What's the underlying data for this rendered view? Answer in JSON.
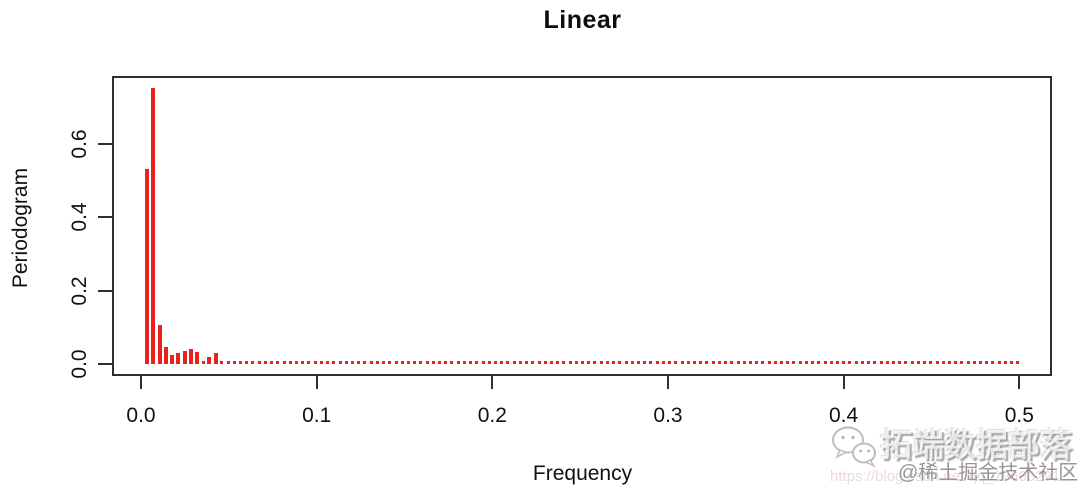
{
  "chart_data": {
    "type": "bar",
    "title": "Linear",
    "xlabel": "Frequency",
    "ylabel": "Periodogram",
    "xlim": [
      0,
      0.52
    ],
    "ylim": [
      0,
      0.76
    ],
    "x_ticks": [
      "0.0",
      "0.1",
      "0.2",
      "0.3",
      "0.4",
      "0.5"
    ],
    "y_ticks": [
      "0.0",
      "0.2",
      "0.4",
      "0.6"
    ],
    "grid": "off",
    "legend": "none",
    "bar_color": "#e8231e",
    "axis_color": "#2e2e2e",
    "freq_step": 0.00354,
    "freq_note": "frequency of point k = k * freq_step",
    "values": [
      0.53,
      0.75,
      0.105,
      0.047,
      0.024,
      0.031,
      0.035,
      0.04,
      0.032,
      0.005,
      0.018,
      0.029,
      0.005,
      0.004,
      0.006,
      0.004,
      0.005,
      0.004,
      0.004,
      0.006,
      0.004,
      0.005,
      0.004,
      0.005,
      0.004,
      0.006,
      0.004,
      0.004,
      0.005,
      0.004,
      0.005,
      0.004,
      0.006,
      0.004,
      0.005,
      0.004,
      0.004,
      0.005,
      0.004,
      0.006,
      0.004,
      0.005,
      0.004,
      0.005,
      0.004,
      0.004,
      0.006,
      0.004,
      0.005,
      0.004,
      0.005,
      0.004,
      0.004,
      0.006,
      0.004,
      0.005,
      0.004,
      0.004,
      0.005,
      0.004,
      0.006,
      0.004,
      0.005,
      0.004,
      0.005,
      0.004,
      0.004,
      0.006,
      0.004,
      0.005,
      0.004,
      0.004,
      0.006,
      0.004,
      0.005,
      0.004,
      0.005,
      0.004,
      0.004,
      0.006,
      0.004,
      0.005,
      0.004,
      0.004,
      0.005,
      0.004,
      0.006,
      0.004,
      0.005,
      0.004,
      0.005,
      0.004,
      0.004,
      0.006,
      0.004,
      0.005,
      0.004,
      0.004,
      0.005,
      0.004,
      0.006,
      0.004,
      0.005,
      0.004,
      0.005,
      0.004,
      0.004,
      0.006,
      0.004,
      0.005,
      0.004,
      0.004,
      0.006,
      0.004,
      0.005,
      0.004,
      0.005,
      0.004,
      0.004,
      0.006,
      0.004,
      0.005,
      0.004,
      0.005,
      0.004,
      0.004,
      0.006,
      0.004,
      0.005,
      0.004,
      0.005,
      0.004,
      0.004,
      0.006,
      0.004,
      0.005,
      0.004,
      0.004,
      0.005,
      0.004,
      0.005
    ]
  },
  "watermark": {
    "brand": "拓端数据部落",
    "community": "@稀土掘金技术社区",
    "url": "https://blog.csdn.net/qq_19600291",
    "icon": "wechat-icon",
    "icon_color": "#bdbdbd"
  }
}
